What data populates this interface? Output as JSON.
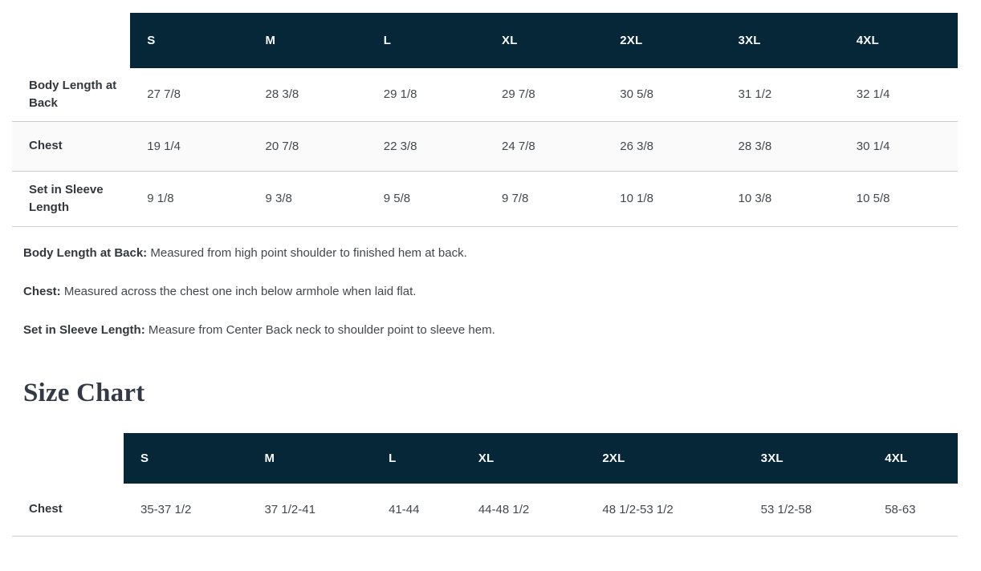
{
  "sizes": [
    "S",
    "M",
    "L",
    "XL",
    "2XL",
    "3XL",
    "4XL"
  ],
  "measurement_table": {
    "rows": [
      {
        "label": "Body Length at Back",
        "values": [
          "27 7/8",
          "28 3/8",
          "29 1/8",
          "29 7/8",
          "30 5/8",
          "31 1/2",
          "32 1/4"
        ]
      },
      {
        "label": "Chest",
        "values": [
          "19 1/4",
          "20 7/8",
          "22 3/8",
          "24 7/8",
          "26 3/8",
          "28 3/8",
          "30 1/4"
        ]
      },
      {
        "label": "Set in Sleeve Length",
        "values": [
          "9 1/8",
          "9 3/8",
          "9 5/8",
          "9 7/8",
          "10 1/8",
          "10 3/8",
          "10 5/8"
        ]
      }
    ]
  },
  "notes": [
    {
      "term": "Body Length at Back:",
      "definition": "Measured from high point shoulder to finished hem at back."
    },
    {
      "term": "Chest:",
      "definition": "Measured across the chest one inch below armhole when laid flat."
    },
    {
      "term": "Set in Sleeve Length:",
      "definition": "Measure from Center Back neck to shoulder point to sleeve hem."
    }
  ],
  "heading": "Size Chart",
  "size_chart_table": {
    "rows": [
      {
        "label": "Chest",
        "values": [
          "35-37 1/2",
          "37 1/2-41",
          "41-44",
          "44-48 1/2",
          "48 1/2-53 1/2",
          "53 1/2-58",
          "58-63"
        ]
      }
    ]
  },
  "colors": {
    "header_bg": "#062737",
    "header_text": "#fafbfc",
    "border": "#cccccc",
    "stripe_bg": "#fafafa",
    "text": "#43484d",
    "label_text": "#33383d",
    "heading_text": "#333a44",
    "page_bg": "#ffffff"
  }
}
